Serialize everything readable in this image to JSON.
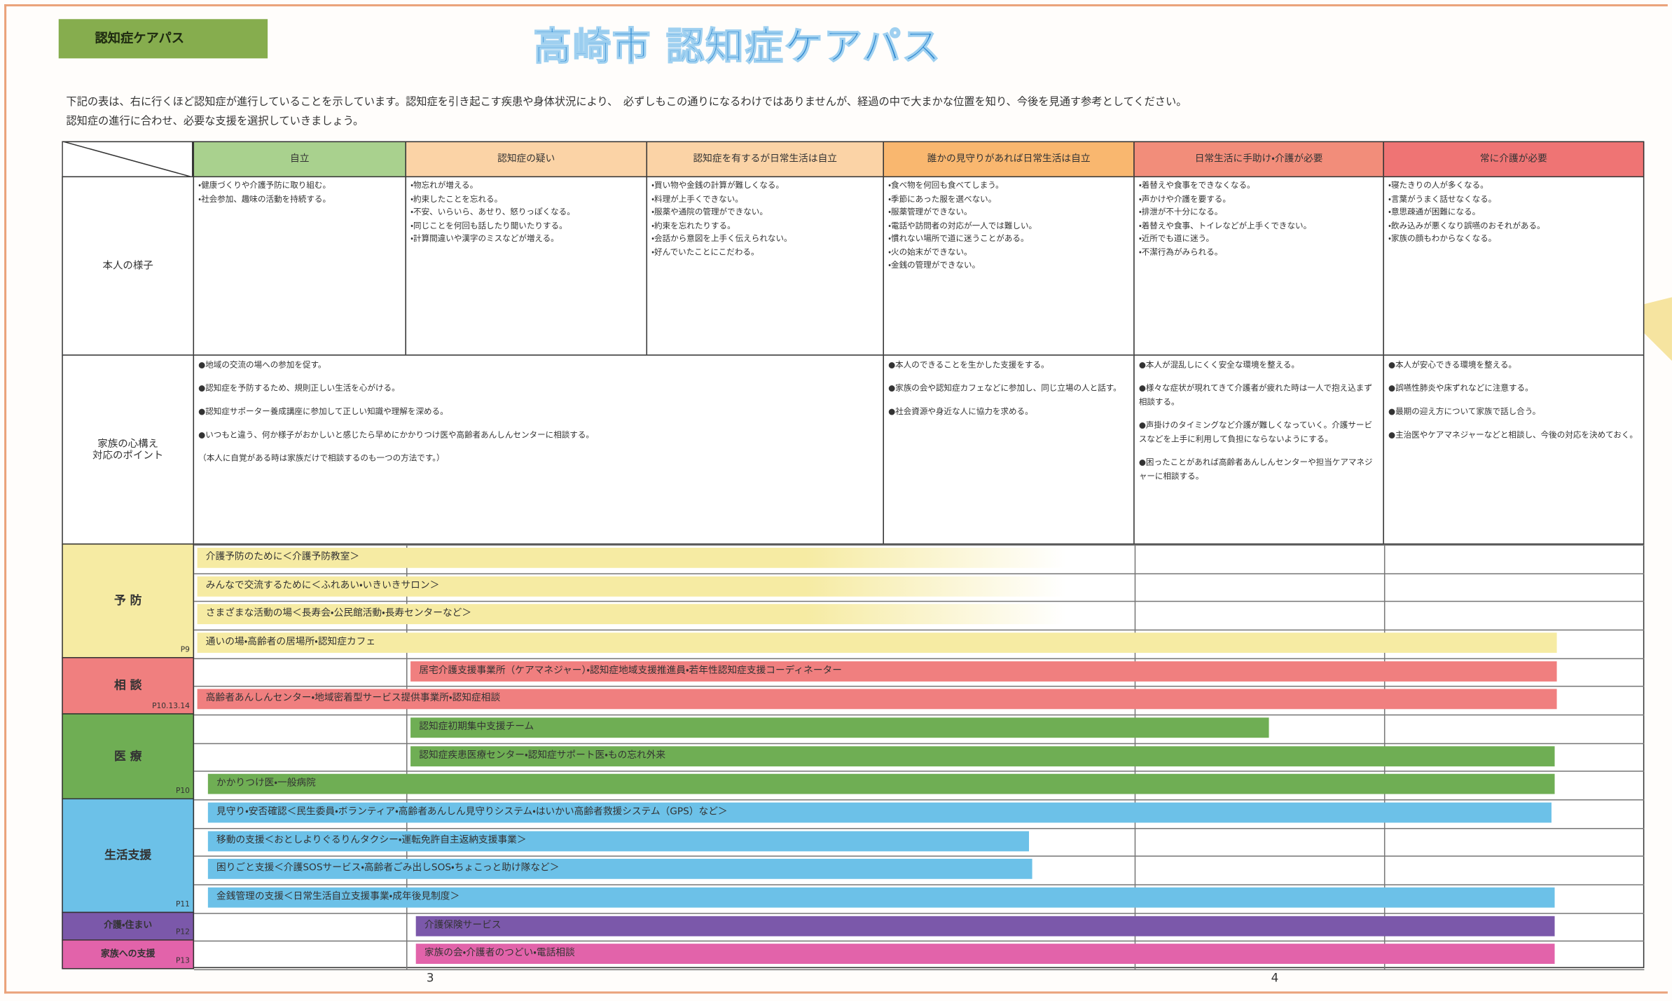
{
  "header": {
    "tag": "認知症ケアパス",
    "title": "高崎市 認知症ケアパス",
    "intro": [
      "下記の表は、右に行くほど認知症が進行していることを示しています。認知症を引き起こす疾患や身体状況により、　必ずしもこの通りになるわけではありませんが、経過の中で大まかな位置を知り、今後を見通す参考としてください。",
      "認知症の進行に合わせ、必要な支援を選択していきましょう。"
    ]
  },
  "table": {
    "stages": [
      "自立",
      "認知症の疑い",
      "認知症を有するが日常生活は自立",
      "誰かの見守りがあれば日常生活は自立",
      "日常生活に手助け・介護が必要",
      "常に介護が必要"
    ],
    "rows": [
      {
        "label": "本人の様子",
        "cells": [
          [
            "・健康づくりや介護予防に取り組む。",
            "・社会参加、趣味の活動を持続する。"
          ],
          [
            "・物忘れが増える。",
            "・約束したことを忘れる。",
            "・不安、いらいら、あせり、怒りっぽくなる。",
            "・同じことを何回も話したり聞いたりする。",
            "・計算間違いや漢字のミスなどが増える。"
          ],
          [
            "・買い物や金銭の計算が難しくなる。",
            "・料理が上手くできない。",
            "・服薬や通院の管理ができない。",
            "・約束を忘れたりする。",
            "・会話から意図を上手く伝えられない。",
            "・好んでいたことにこだわる。"
          ],
          [
            "・食べ物を何回も食べてしまう。",
            "・季節にあった服を選べない。",
            "・服薬管理ができない。",
            "・電話や訪問者の対応が一人では難しい。",
            "・慣れない場所で道に迷うことがある。",
            "・火の始末ができない。",
            "・金銭の管理ができない。"
          ],
          [
            "・着替えや食事をできなくなる。",
            "・声かけや介護を要する。",
            "・排泄が不十分になる。",
            "・着替えや食事、トイレなどが上手くできない。",
            "・近所でも道に迷う。",
            "・不潔行為がみられる。"
          ],
          [
            "・寝たきりの人が多くなる。",
            "・言葉がうまく話せなくなる。",
            "・意思疎通が困難になる。",
            "・飲み込みが悪くなり誤嚥のおそれがある。",
            "・家族の顔もわからなくなる。"
          ]
        ]
      },
      {
        "label": "家族の心構え\n対応のポイント",
        "cells": [
          [
            "●地域の交流の場への参加を促す。",
            "●認知症を予防するため、規則正しい生活を心がける。",
            "●認知症サポーター養成講座に参加して正しい知識や理解を深める。",
            "●いつもと違う、何か様子がおかしいと感じたら早めにかかりつけ医や高齢者あんしんセンターに相談する。",
            "（本人に自覚がある時は家族だけで相談するのも一つの方法です。）"
          ],
          [
            "●本人のできることを生かした支援をする。",
            "●家族の会や認知症カフェなどに参加し、同じ立場の人と話す。",
            "●社会資源や身近な人に協力を求める。"
          ],
          [
            "●本人が混乱しにくく安全な環境を整える。",
            "●様々な症状が現れてきて介護者が疲れた時は一人で抱え込まず相談する。",
            "●声掛けのタイミングなど介護が難しくなっていく。介護サービスなどを上手に利用して負担にならないようにする。",
            "●困ったことがあれば高齢者あんしんセンターや担当ケアマネジャーに相談する。"
          ],
          [
            "●本人が安心できる環境を整える。",
            "●誤嚥性肺炎や床ずれなどに注意する。",
            "●最期の迎え方について家族で話し合う。",
            "●主治医やケアマネジャーなどと相談し、今後の対応を決めておく。"
          ]
        ]
      }
    ],
    "services": [
      {
        "name": "予 防",
        "page": "P9",
        "items": [
          "介護予防のために＜介護予防教室＞",
          "みんなで交流するために＜ふれあい・いきいきサロン＞",
          "さまざまな活動の場＜長寿会・公民館活動・長寿センターなど＞",
          "通いの場・高齢者の居場所・認知症カフェ"
        ]
      },
      {
        "name": "相 談",
        "page": "P10.13.14",
        "items": [
          "居宅介護支援事業所（ケアマネジャー）・認知症地域支援推進員・若年性認知症支援コーディネーター",
          "高齢者あんしんセンター・地域密着型サービス提供事業所・認知症相談"
        ]
      },
      {
        "name": "医 療",
        "page": "P10",
        "items": [
          "認知症初期集中支援チーム",
          "認知症疾患医療センター・認知症サポート医・もの忘れ外来",
          "かかりつけ医・一般病院"
        ]
      },
      {
        "name": "生活支援",
        "page": "P11",
        "items": [
          "見守り・安否確認＜民生委員・ボランティア・高齢者あんしん見守りシステム・はいかい高齢者救援システム（GPS）など＞",
          "移動の支援＜おとしよりぐるりんタクシー・運転免許自主返納支援事業＞",
          "困りごと支援＜介護SOSサービス・高齢者ごみ出しSOS・ちょこっと助け隊など＞",
          "金銭管理の支援＜日常生活自立支援事業・成年後見制度＞"
        ]
      },
      {
        "name": "介護・住まい",
        "page": "P12",
        "items": [
          "介護保険サービス"
        ]
      },
      {
        "name": "家族への支援",
        "page": "P13",
        "items": [
          "家族の会・介護者のつどい・電話相談"
        ]
      }
    ]
  },
  "page_numbers": [
    "3",
    "4"
  ]
}
